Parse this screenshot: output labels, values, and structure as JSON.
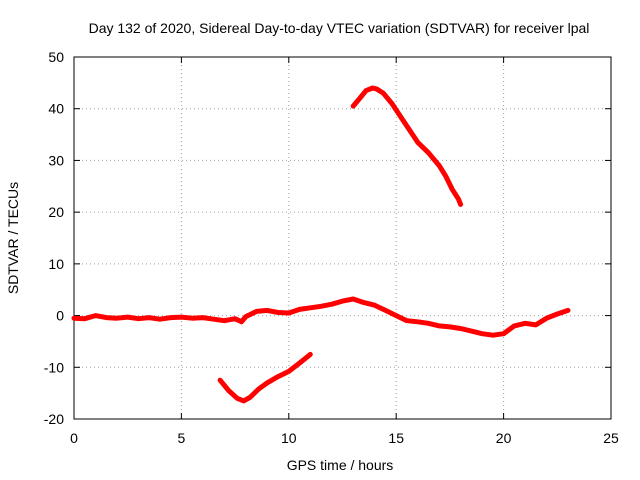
{
  "chart_data": {
    "type": "line",
    "title": "Day 132 of 2020, Sidereal Day-to-day VTEC variation (SDTVAR) for receiver lpal",
    "xlabel": "GPS time / hours",
    "ylabel": "SDTVAR / TECUs",
    "xlim": [
      0,
      25
    ],
    "ylim": [
      -20,
      50
    ],
    "xticks": [
      0,
      5,
      10,
      15,
      20,
      25
    ],
    "yticks": [
      -20,
      -10,
      0,
      10,
      20,
      30,
      40,
      50
    ],
    "xtick_labels": [
      "0",
      "5",
      "10",
      "15",
      "20",
      "25"
    ],
    "ytick_labels": [
      "-20",
      "-10",
      "0",
      "10",
      "20",
      "30",
      "40",
      "50"
    ],
    "grid": true,
    "legend": "none",
    "series_color": "#ff0000",
    "series": [
      {
        "name": "segment-1",
        "x": [
          0,
          0.5,
          1,
          1.5,
          2,
          2.5,
          3,
          3.5,
          4,
          4.5,
          5,
          5.5,
          6,
          6.5,
          7,
          7.5,
          7.8,
          8.0,
          8.5,
          9,
          9.5,
          10,
          10.5,
          11,
          11.5,
          12,
          12.5,
          13,
          13.5,
          14,
          14.5,
          15,
          15.5,
          16,
          16.5,
          17,
          17.5,
          18,
          18.5,
          19,
          19.5,
          20,
          20.5,
          21,
          21.5,
          22,
          22.5,
          23
        ],
        "y": [
          -0.5,
          -0.6,
          0.0,
          -0.4,
          -0.5,
          -0.3,
          -0.6,
          -0.4,
          -0.7,
          -0.4,
          -0.3,
          -0.5,
          -0.4,
          -0.7,
          -1.0,
          -0.6,
          -1.2,
          -0.2,
          0.8,
          1.0,
          0.6,
          0.5,
          1.2,
          1.5,
          1.8,
          2.2,
          2.8,
          3.2,
          2.5,
          2.0,
          1.0,
          0.0,
          -1.0,
          -1.2,
          -1.5,
          -2.0,
          -2.2,
          -2.5,
          -3.0,
          -3.5,
          -3.8,
          -3.5,
          -2.0,
          -1.5,
          -1.8,
          -0.5,
          0.3,
          1.0
        ]
      },
      {
        "name": "segment-2",
        "x": [
          6.8,
          7.2,
          7.6,
          7.9,
          8.2,
          8.6,
          9.0,
          9.5,
          10.0,
          10.5,
          11.0
        ],
        "y": [
          -12.5,
          -14.5,
          -16.0,
          -16.5,
          -15.8,
          -14.2,
          -13.0,
          -11.8,
          -10.8,
          -9.2,
          -7.5
        ]
      },
      {
        "name": "segment-3",
        "x": [
          13.0,
          13.3,
          13.6,
          13.9,
          14.1,
          14.4,
          14.8,
          15.2,
          15.6,
          16.0,
          16.5,
          17.0,
          17.3,
          17.6,
          17.9,
          18.0
        ],
        "y": [
          40.5,
          42.0,
          43.5,
          44.0,
          43.8,
          43.0,
          41.0,
          38.5,
          36.0,
          33.5,
          31.5,
          29.0,
          27.0,
          24.5,
          22.5,
          21.5
        ]
      }
    ]
  }
}
